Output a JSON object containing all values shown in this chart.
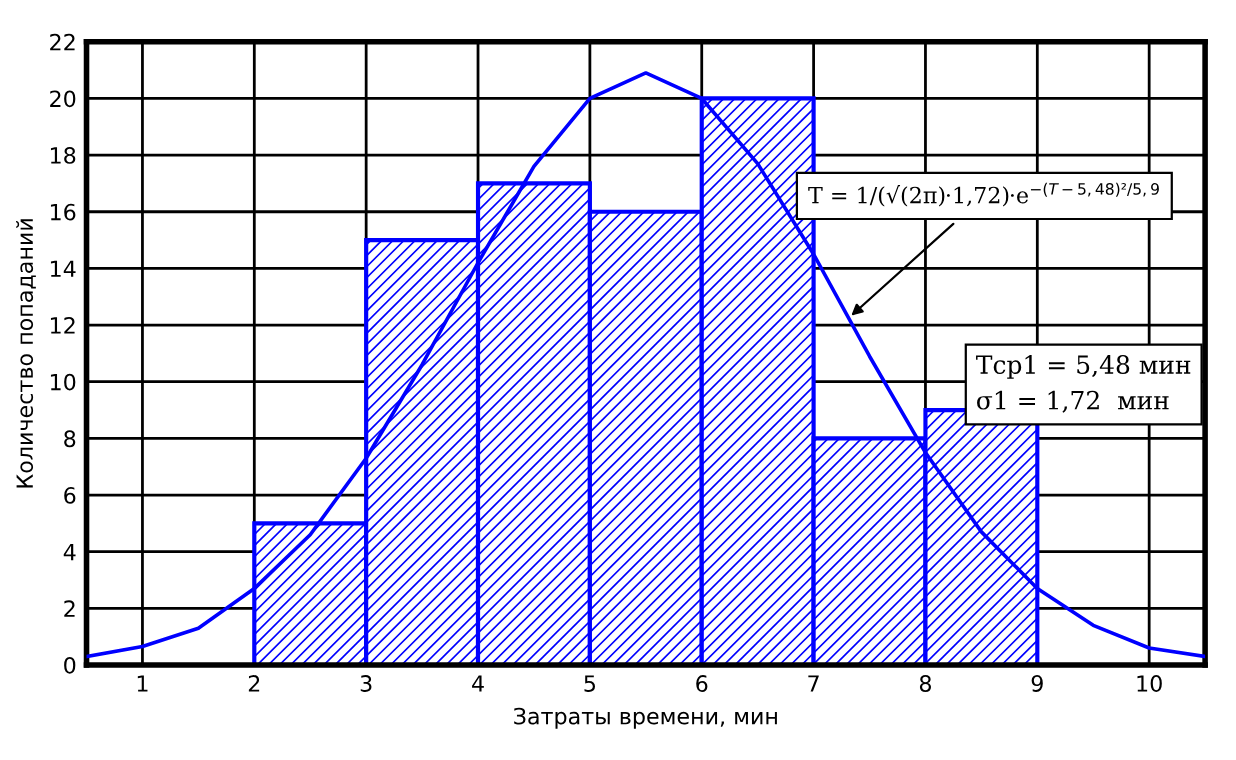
{
  "chart_data": {
    "type": "histogram",
    "xlabel": "Затраты времени, мин",
    "ylabel": "Количество попаданий",
    "xlim": [
      0.5,
      10.5
    ],
    "xticks": [
      1,
      2,
      3,
      4,
      5,
      6,
      7,
      8,
      9,
      10
    ],
    "ylim": [
      0,
      22
    ],
    "yticks": [
      0,
      2,
      4,
      6,
      8,
      10,
      12,
      14,
      16,
      18,
      20,
      22
    ],
    "grid": true,
    "legend": false,
    "color": "#0000ff",
    "bins": [
      2,
      3,
      4,
      5,
      6,
      7,
      8,
      9
    ],
    "values": [
      5,
      15,
      17,
      16,
      20,
      8,
      9
    ],
    "series": [
      {
        "type": "line",
        "color": "#0000ff",
        "marker": "none",
        "x": [
          0.5,
          1,
          1.5,
          2,
          2.5,
          3,
          3.5,
          4,
          4.5,
          5,
          5.5,
          6,
          6.5,
          7,
          7.5,
          8,
          8.5,
          9,
          9.5,
          10,
          10.5
        ],
        "values": [
          0.3,
          0.65,
          1.3,
          2.7,
          4.6,
          7.3,
          10.6,
          14.2,
          17.6,
          20.0,
          20.9,
          20.0,
          17.7,
          14.5,
          10.9,
          7.5,
          4.7,
          2.7,
          1.4,
          0.6,
          0.3
        ]
      }
    ],
    "annotations": [
      {
        "text": "T = 1/(√(2π)·1,72)·e$^{−(T−5,48)²/5,9}$",
        "x": 7.3,
        "y": 12.2
      },
      "Tср1 = 5,48 мин\nσ1 = 1,72  мин"
    ]
  }
}
